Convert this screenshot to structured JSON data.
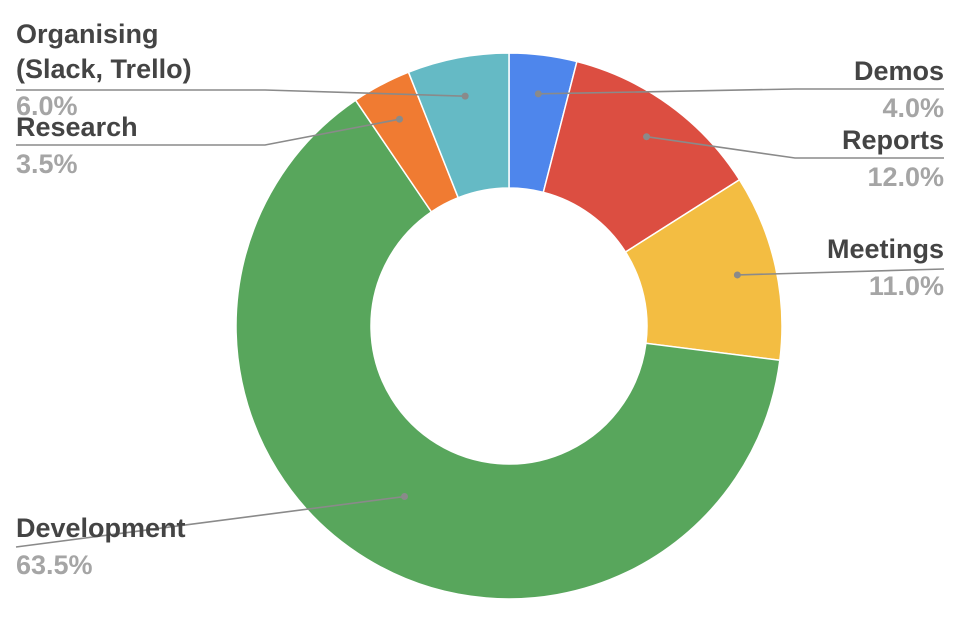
{
  "chart_data": {
    "type": "pie",
    "donut": true,
    "title": "",
    "legend": "none",
    "slices": [
      {
        "label": "Demos",
        "value": 4.0,
        "display": "4.0%",
        "color": "#4e86ec"
      },
      {
        "label": "Reports",
        "value": 12.0,
        "display": "12.0%",
        "color": "#dc4e41"
      },
      {
        "label": "Meetings",
        "value": 11.0,
        "display": "11.0%",
        "color": "#f3bd42"
      },
      {
        "label": "Development",
        "value": 63.5,
        "display": "63.5%",
        "color": "#58a65c"
      },
      {
        "label": "Research",
        "value": 3.5,
        "display": "3.5%",
        "color": "#f07b32"
      },
      {
        "label": "Organising (Slack, Trello)",
        "value": 6.0,
        "display": "6.0%",
        "color": "#65bac5"
      }
    ]
  }
}
